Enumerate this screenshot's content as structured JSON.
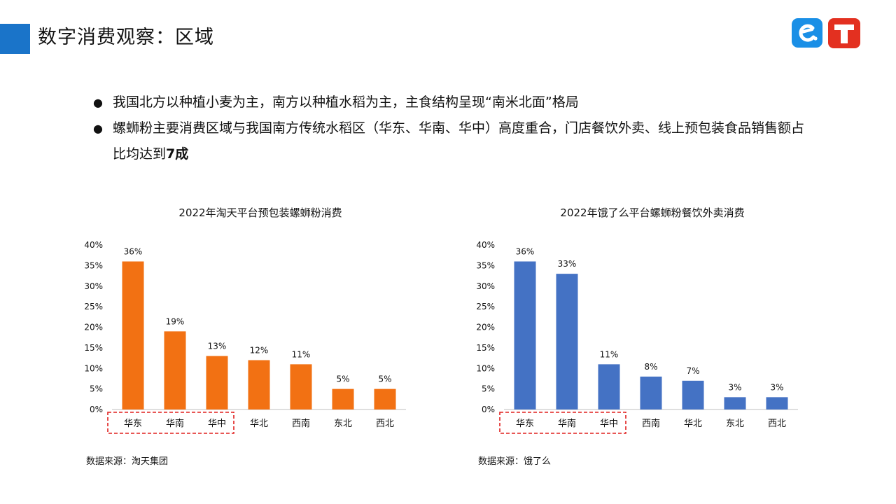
{
  "page": {
    "title": "数字消费观察：区域"
  },
  "logos": {
    "left_icon": "eleme-icon",
    "right_icon": "taotian-icon",
    "left_color": "#1a8fe6",
    "right_color": "#e33020"
  },
  "bullets": [
    {
      "text": "我国北方以种植小麦为主，南方以种植水稻为主，主食结构呈现“南米北面”格局",
      "bold": ""
    },
    {
      "text": "螺蛳粉主要消费区域与我国南方传统水稻区（华东、华南、华中）高度重合，门店餐饮外卖、线上预包装食品销售额占比均达到",
      "bold": "7成"
    }
  ],
  "chart_data": [
    {
      "type": "bar",
      "title": "2022年淘天平台预包装螺蛳粉消费",
      "categories": [
        "华东",
        "华南",
        "华中",
        "华北",
        "西南",
        "东北",
        "西北"
      ],
      "values": [
        36,
        19,
        13,
        12,
        11,
        5,
        5
      ],
      "value_labels": [
        "36%",
        "19%",
        "13%",
        "12%",
        "11%",
        "5%",
        "5%"
      ],
      "yticks": [
        "0%",
        "5%",
        "10%",
        "15%",
        "20%",
        "25%",
        "30%",
        "35%",
        "40%"
      ],
      "ylim": [
        0,
        40
      ],
      "bar_color": "#f27113",
      "highlighted_categories": [
        "华东",
        "华南",
        "华中"
      ],
      "grid": false,
      "source": "数据来源：淘天集团"
    },
    {
      "type": "bar",
      "title": "2022年饿了么平台螺蛳粉餐饮外卖消费",
      "categories": [
        "华东",
        "华南",
        "华中",
        "西南",
        "华北",
        "东北",
        "西北"
      ],
      "values": [
        36,
        33,
        11,
        8,
        7,
        3,
        3
      ],
      "value_labels": [
        "36%",
        "33%",
        "11%",
        "8%",
        "7%",
        "3%",
        "3%"
      ],
      "yticks": [
        "0%",
        "5%",
        "10%",
        "15%",
        "20%",
        "25%",
        "30%",
        "35%",
        "40%"
      ],
      "ylim": [
        0,
        40
      ],
      "bar_color": "#4472c4",
      "highlighted_categories": [
        "华东",
        "华南",
        "华中"
      ],
      "grid": false,
      "source": "数据来源：饿了么"
    }
  ]
}
